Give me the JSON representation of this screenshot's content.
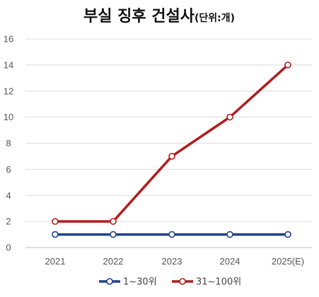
{
  "chart_data": {
    "type": "line",
    "title": "부실 징후 건설사",
    "title_unit": "(단위:개)",
    "categories": [
      "2021",
      "2022",
      "2023",
      "2024",
      "2025(E)"
    ],
    "ylim": [
      0,
      16
    ],
    "yticks": [
      0,
      2,
      4,
      6,
      8,
      10,
      12,
      14,
      16
    ],
    "grid": true,
    "legend_position": "bottom",
    "series": [
      {
        "name": "1~30위",
        "color": "#1f3f8a",
        "values": [
          1,
          1,
          1,
          1,
          1
        ]
      },
      {
        "name": "31~100위",
        "color": "#b31b1b",
        "values": [
          2,
          2,
          7,
          10,
          14
        ]
      }
    ]
  }
}
